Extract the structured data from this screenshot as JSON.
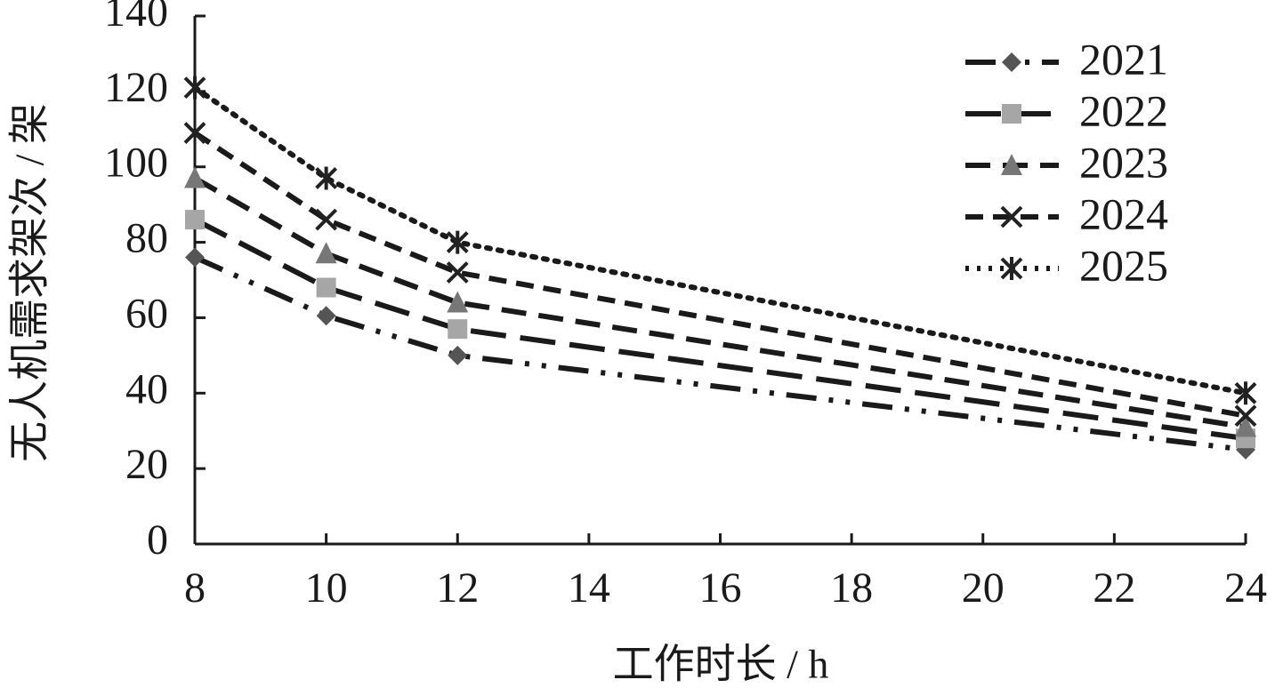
{
  "chart_data": {
    "type": "line",
    "x_label": "工作时长 / h",
    "y_label": "无人机需求架次 / 架",
    "x": [
      8,
      10,
      12,
      24
    ],
    "series": [
      {
        "name": "2021",
        "color": "#555555",
        "marker": "diamond",
        "dash": "dash-dot-dot",
        "values": [
          76,
          60.5,
          50,
          25
        ]
      },
      {
        "name": "2022",
        "color": "#a6a6a6",
        "marker": "square",
        "dash": "long-dash",
        "values": [
          86,
          68,
          57,
          28
        ]
      },
      {
        "name": "2023",
        "color": "#777777",
        "marker": "triangle",
        "dash": "dash",
        "values": [
          97,
          77,
          64,
          31
        ]
      },
      {
        "name": "2024",
        "color": "#222222",
        "marker": "x",
        "dash": "short-dash",
        "values": [
          109,
          86,
          72,
          34
        ]
      },
      {
        "name": "2025",
        "color": "#222222",
        "marker": "asterisk",
        "dash": "dot",
        "values": [
          121,
          97,
          80,
          40
        ]
      }
    ],
    "xlim": [
      8,
      24
    ],
    "xticks": [
      8,
      10,
      12,
      14,
      16,
      18,
      20,
      22,
      24
    ],
    "ylim": [
      0,
      140
    ],
    "yticks": [
      0,
      20,
      40,
      60,
      80,
      100,
      120,
      140
    ],
    "grid": false,
    "legend": "upper-right"
  }
}
